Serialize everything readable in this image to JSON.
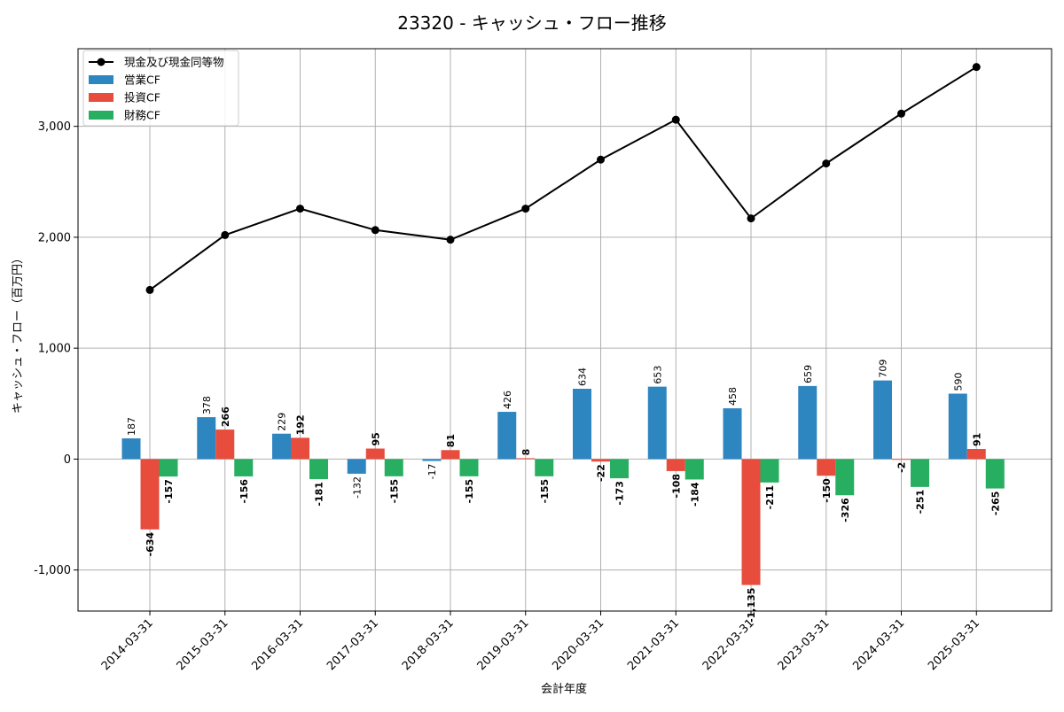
{
  "chart_data": {
    "type": "bar",
    "title": "23320 - キャッシュ・フロー推移",
    "xlabel": "会計年度",
    "ylabel": "キャッシュ・フロー（百万円）",
    "categories": [
      "2014-03-31",
      "2015-03-31",
      "2016-03-31",
      "2017-03-31",
      "2018-03-31",
      "2019-03-31",
      "2020-03-31",
      "2021-03-31",
      "2022-03-31",
      "2023-03-31",
      "2024-03-31",
      "2025-03-31"
    ],
    "ylim": [
      -1370,
      3700
    ],
    "yticks": [
      -1000,
      0,
      1000,
      2000,
      3000
    ],
    "ytick_labels": [
      "-1,000",
      "0",
      "1,000",
      "2,000",
      "3,000"
    ],
    "grid": true,
    "legend_position": "top-left",
    "series": [
      {
        "name": "営業CF",
        "kind": "bar",
        "color": "#2e86c1",
        "values": [
          187,
          378,
          229,
          -132,
          -17,
          426,
          634,
          653,
          458,
          659,
          709,
          590
        ],
        "labels": [
          "187",
          "378",
          "229",
          "-132",
          "-17",
          "426",
          "634",
          "653",
          "458",
          "659",
          "709",
          "590"
        ]
      },
      {
        "name": "投資CF",
        "kind": "bar",
        "color": "#e74c3c",
        "values": [
          -634,
          266,
          192,
          95,
          81,
          8,
          -22,
          -108,
          -1135,
          -150,
          -2,
          91
        ],
        "labels": [
          "-634",
          "266",
          "192",
          "95",
          "81",
          "8",
          "-22",
          "-108",
          "-1,135",
          "-150",
          "-2",
          "91"
        ]
      },
      {
        "name": "財務CF",
        "kind": "bar",
        "color": "#27ae60",
        "values": [
          -157,
          -156,
          -181,
          -155,
          -155,
          -155,
          -173,
          -184,
          -211,
          -326,
          -251,
          -265
        ],
        "labels": [
          "-157",
          "-156",
          "-181",
          "-155",
          "-155",
          "-155",
          "-173",
          "-184",
          "-211",
          "-326",
          "-251",
          "-265"
        ]
      },
      {
        "name": "現金及び現金同等物",
        "kind": "line",
        "color": "#000000",
        "values": [
          1525,
          2020,
          2258,
          2065,
          1978,
          2258,
          2700,
          3060,
          2170,
          2665,
          3115,
          3535
        ]
      }
    ]
  }
}
